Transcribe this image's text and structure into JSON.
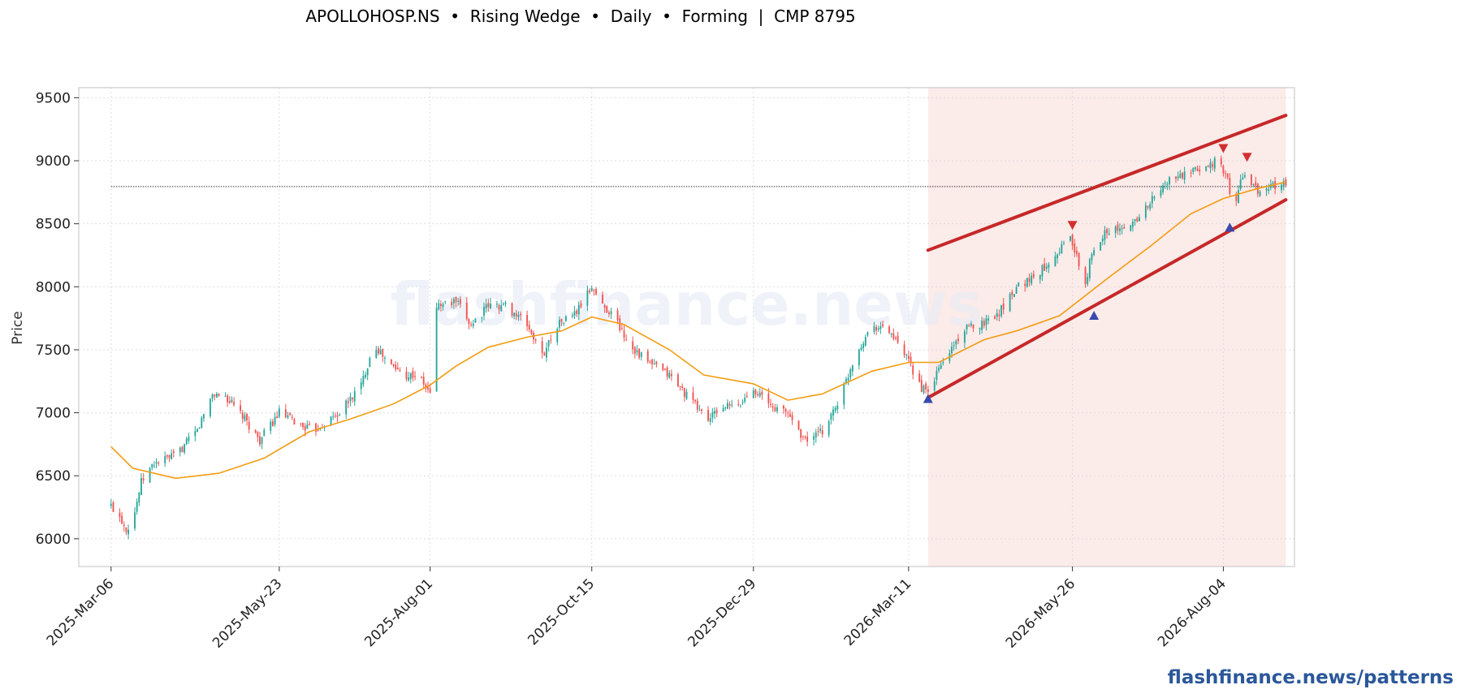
{
  "chart_data": {
    "type": "candlestick",
    "title": "APOLLOHOSP.NS  •  Rising Wedge  •  Daily  •  Forming  |  CMP 8795",
    "ylabel": "Price",
    "watermark": "flashfinance.news",
    "ylim": [
      5780,
      9580
    ],
    "yticks": [
      6000,
      6500,
      7000,
      7500,
      8000,
      8500,
      9000,
      9500
    ],
    "x_range": [
      "2025-02-19",
      "2026-09-06"
    ],
    "x_ticks": [
      "2025-Mar-06",
      "2025-May-23",
      "2025-Aug-01",
      "2025-Oct-15",
      "2025-Dec-29",
      "2026-Mar-11",
      "2026-May-26",
      "2026-Aug-04"
    ],
    "x_tick_dates": [
      "2025-03-06",
      "2025-05-23",
      "2025-08-01",
      "2025-10-15",
      "2025-12-29",
      "2026-03-11",
      "2026-05-26",
      "2026-08-04"
    ],
    "grid": true,
    "price_path": [
      [
        "2025-03-06",
        6260
      ],
      [
        "2025-03-10",
        6180
      ],
      [
        "2025-03-13",
        6080
      ],
      [
        "2025-03-16",
        6140
      ],
      [
        "2025-03-20",
        6450
      ],
      [
        "2025-03-26",
        6600
      ],
      [
        "2025-04-05",
        6660
      ],
      [
        "2025-04-15",
        6860
      ],
      [
        "2025-04-22",
        7150
      ],
      [
        "2025-04-28",
        7130
      ],
      [
        "2025-05-06",
        6970
      ],
      [
        "2025-05-14",
        6780
      ],
      [
        "2025-05-23",
        7000
      ],
      [
        "2025-06-02",
        6900
      ],
      [
        "2025-06-08",
        6860
      ],
      [
        "2025-06-20",
        7000
      ],
      [
        "2025-06-30",
        7220
      ],
      [
        "2025-07-06",
        7550
      ],
      [
        "2025-07-12",
        7400
      ],
      [
        "2025-07-20",
        7300
      ],
      [
        "2025-07-26",
        7300
      ],
      [
        "2025-08-01",
        7150
      ],
      [
        "2025-08-04",
        7850
      ],
      [
        "2025-08-13",
        7880
      ],
      [
        "2025-08-20",
        7700
      ],
      [
        "2025-08-28",
        7850
      ],
      [
        "2025-09-05",
        7850
      ],
      [
        "2025-09-15",
        7700
      ],
      [
        "2025-09-22",
        7450
      ],
      [
        "2025-09-29",
        7700
      ],
      [
        "2025-10-08",
        7800
      ],
      [
        "2025-10-15",
        8000
      ],
      [
        "2025-10-20",
        7850
      ],
      [
        "2025-10-25",
        7780
      ],
      [
        "2025-11-01",
        7550
      ],
      [
        "2025-11-10",
        7400
      ],
      [
        "2025-11-20",
        7300
      ],
      [
        "2025-11-30",
        7100
      ],
      [
        "2025-12-08",
        6950
      ],
      [
        "2025-12-15",
        7050
      ],
      [
        "2025-12-22",
        7050
      ],
      [
        "2025-12-29",
        7200
      ],
      [
        "2026-01-06",
        7050
      ],
      [
        "2026-01-14",
        7000
      ],
      [
        "2026-01-22",
        6780
      ],
      [
        "2026-01-30",
        6850
      ],
      [
        "2026-02-08",
        7150
      ],
      [
        "2026-02-14",
        7450
      ],
      [
        "2026-02-22",
        7700
      ],
      [
        "2026-03-02",
        7650
      ],
      [
        "2026-03-11",
        7400
      ],
      [
        "2026-03-17",
        7200
      ],
      [
        "2026-03-20",
        7150
      ],
      [
        "2026-03-25",
        7350
      ],
      [
        "2026-04-05",
        7650
      ],
      [
        "2026-04-15",
        7720
      ],
      [
        "2026-04-22",
        7800
      ],
      [
        "2026-04-30",
        8000
      ],
      [
        "2026-05-10",
        8100
      ],
      [
        "2026-05-20",
        8300
      ],
      [
        "2026-05-25",
        8400
      ],
      [
        "2026-06-01",
        8000
      ],
      [
        "2026-06-03",
        8200
      ],
      [
        "2026-06-10",
        8450
      ],
      [
        "2026-06-20",
        8450
      ],
      [
        "2026-06-30",
        8650
      ],
      [
        "2026-07-10",
        8850
      ],
      [
        "2026-07-20",
        8900
      ],
      [
        "2026-08-01",
        9000
      ],
      [
        "2026-08-06",
        8850
      ],
      [
        "2026-08-09",
        8600
      ],
      [
        "2026-08-13",
        8900
      ],
      [
        "2026-08-20",
        8750
      ],
      [
        "2026-08-27",
        8800
      ],
      [
        "2026-09-02",
        8820
      ]
    ],
    "moving_average": [
      [
        "2025-03-06",
        6730
      ],
      [
        "2025-03-16",
        6560
      ],
      [
        "2025-04-05",
        6480
      ],
      [
        "2025-04-25",
        6520
      ],
      [
        "2025-05-16",
        6640
      ],
      [
        "2025-06-06",
        6850
      ],
      [
        "2025-06-25",
        6950
      ],
      [
        "2025-07-15",
        7070
      ],
      [
        "2025-08-01",
        7220
      ],
      [
        "2025-08-13",
        7370
      ],
      [
        "2025-08-28",
        7520
      ],
      [
        "2025-09-15",
        7600
      ],
      [
        "2025-10-01",
        7650
      ],
      [
        "2025-10-15",
        7760
      ],
      [
        "2025-10-30",
        7700
      ],
      [
        "2025-11-20",
        7500
      ],
      [
        "2025-12-06",
        7300
      ],
      [
        "2025-12-29",
        7230
      ],
      [
        "2026-01-14",
        7100
      ],
      [
        "2026-01-30",
        7150
      ],
      [
        "2026-02-22",
        7330
      ],
      [
        "2026-03-11",
        7400
      ],
      [
        "2026-03-25",
        7400
      ],
      [
        "2026-04-15",
        7580
      ],
      [
        "2026-04-30",
        7650
      ],
      [
        "2026-05-20",
        7770
      ],
      [
        "2026-06-10",
        8050
      ],
      [
        "2026-07-01",
        8320
      ],
      [
        "2026-07-20",
        8580
      ],
      [
        "2026-08-04",
        8700
      ],
      [
        "2026-08-20",
        8780
      ],
      [
        "2026-09-02",
        8830
      ]
    ],
    "highlight_zone": [
      "2026-03-20",
      "2026-09-02"
    ],
    "cmp_line": {
      "value": 8795,
      "from": "2025-03-06",
      "to": "2026-09-02"
    },
    "upper_line": [
      [
        "2026-03-20",
        8290
      ],
      [
        "2026-09-02",
        9360
      ]
    ],
    "lower_line": [
      [
        "2026-03-20",
        7120
      ],
      [
        "2026-09-02",
        8690
      ]
    ],
    "peak_markers": [
      [
        "2026-05-26",
        8490
      ],
      [
        "2026-08-04",
        9100
      ],
      [
        "2026-08-15",
        9030
      ]
    ],
    "trough_markers": [
      [
        "2026-03-20",
        7110
      ],
      [
        "2026-06-05",
        7770
      ],
      [
        "2026-08-07",
        8470
      ]
    ],
    "colors": {
      "up": "#26a69a",
      "down": "#ef5350",
      "ma": "#f39c12",
      "wedge": "#c62828",
      "peak": "#d32f2f",
      "trough": "#3949ab",
      "zone": "#f9e4e1",
      "grid": "#dddddd",
      "brand": "#2b579a"
    }
  },
  "footer": {
    "brand": "flashfinance.news/patterns"
  }
}
